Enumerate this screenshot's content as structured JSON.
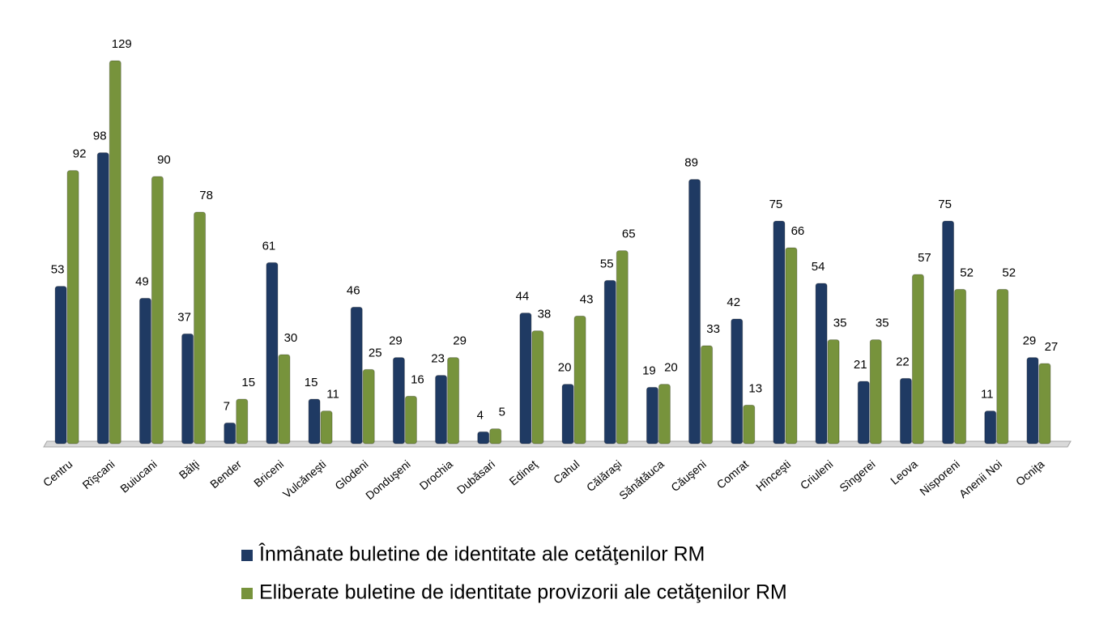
{
  "chart_data": {
    "type": "bar",
    "categories": [
      "Centru",
      "Rîşcani",
      "Buiucani",
      "Bălţi",
      "Bender",
      "Briceni",
      "Vulcăneşti",
      "Glodeni",
      "Donduşeni",
      "Drochia",
      "Dubăsari",
      "Edineţ",
      "Cahul",
      "Călăraşi",
      "Sănătăuca",
      "Căuşeni",
      "Comrat",
      "Hînceşti",
      "Criuleni",
      "Sîngerei",
      "Leova",
      "Nisporeni",
      "Anenii Noi",
      "Ocniţa"
    ],
    "series": [
      {
        "name": "Înmânate buletine de identitate ale cetăţenilor RM",
        "color": "#1f3a63",
        "values": [
          53,
          98,
          49,
          37,
          7,
          61,
          15,
          46,
          29,
          23,
          4,
          44,
          20,
          55,
          19,
          89,
          42,
          75,
          54,
          21,
          22,
          75,
          11,
          29
        ]
      },
      {
        "name": "Eliberate buletine de identitate provizorii ale cetăţenilor RM",
        "color": "#77933c",
        "values": [
          92,
          129,
          90,
          78,
          15,
          30,
          11,
          25,
          16,
          29,
          5,
          38,
          43,
          65,
          20,
          33,
          13,
          66,
          35,
          35,
          57,
          52,
          52,
          27
        ]
      }
    ]
  }
}
